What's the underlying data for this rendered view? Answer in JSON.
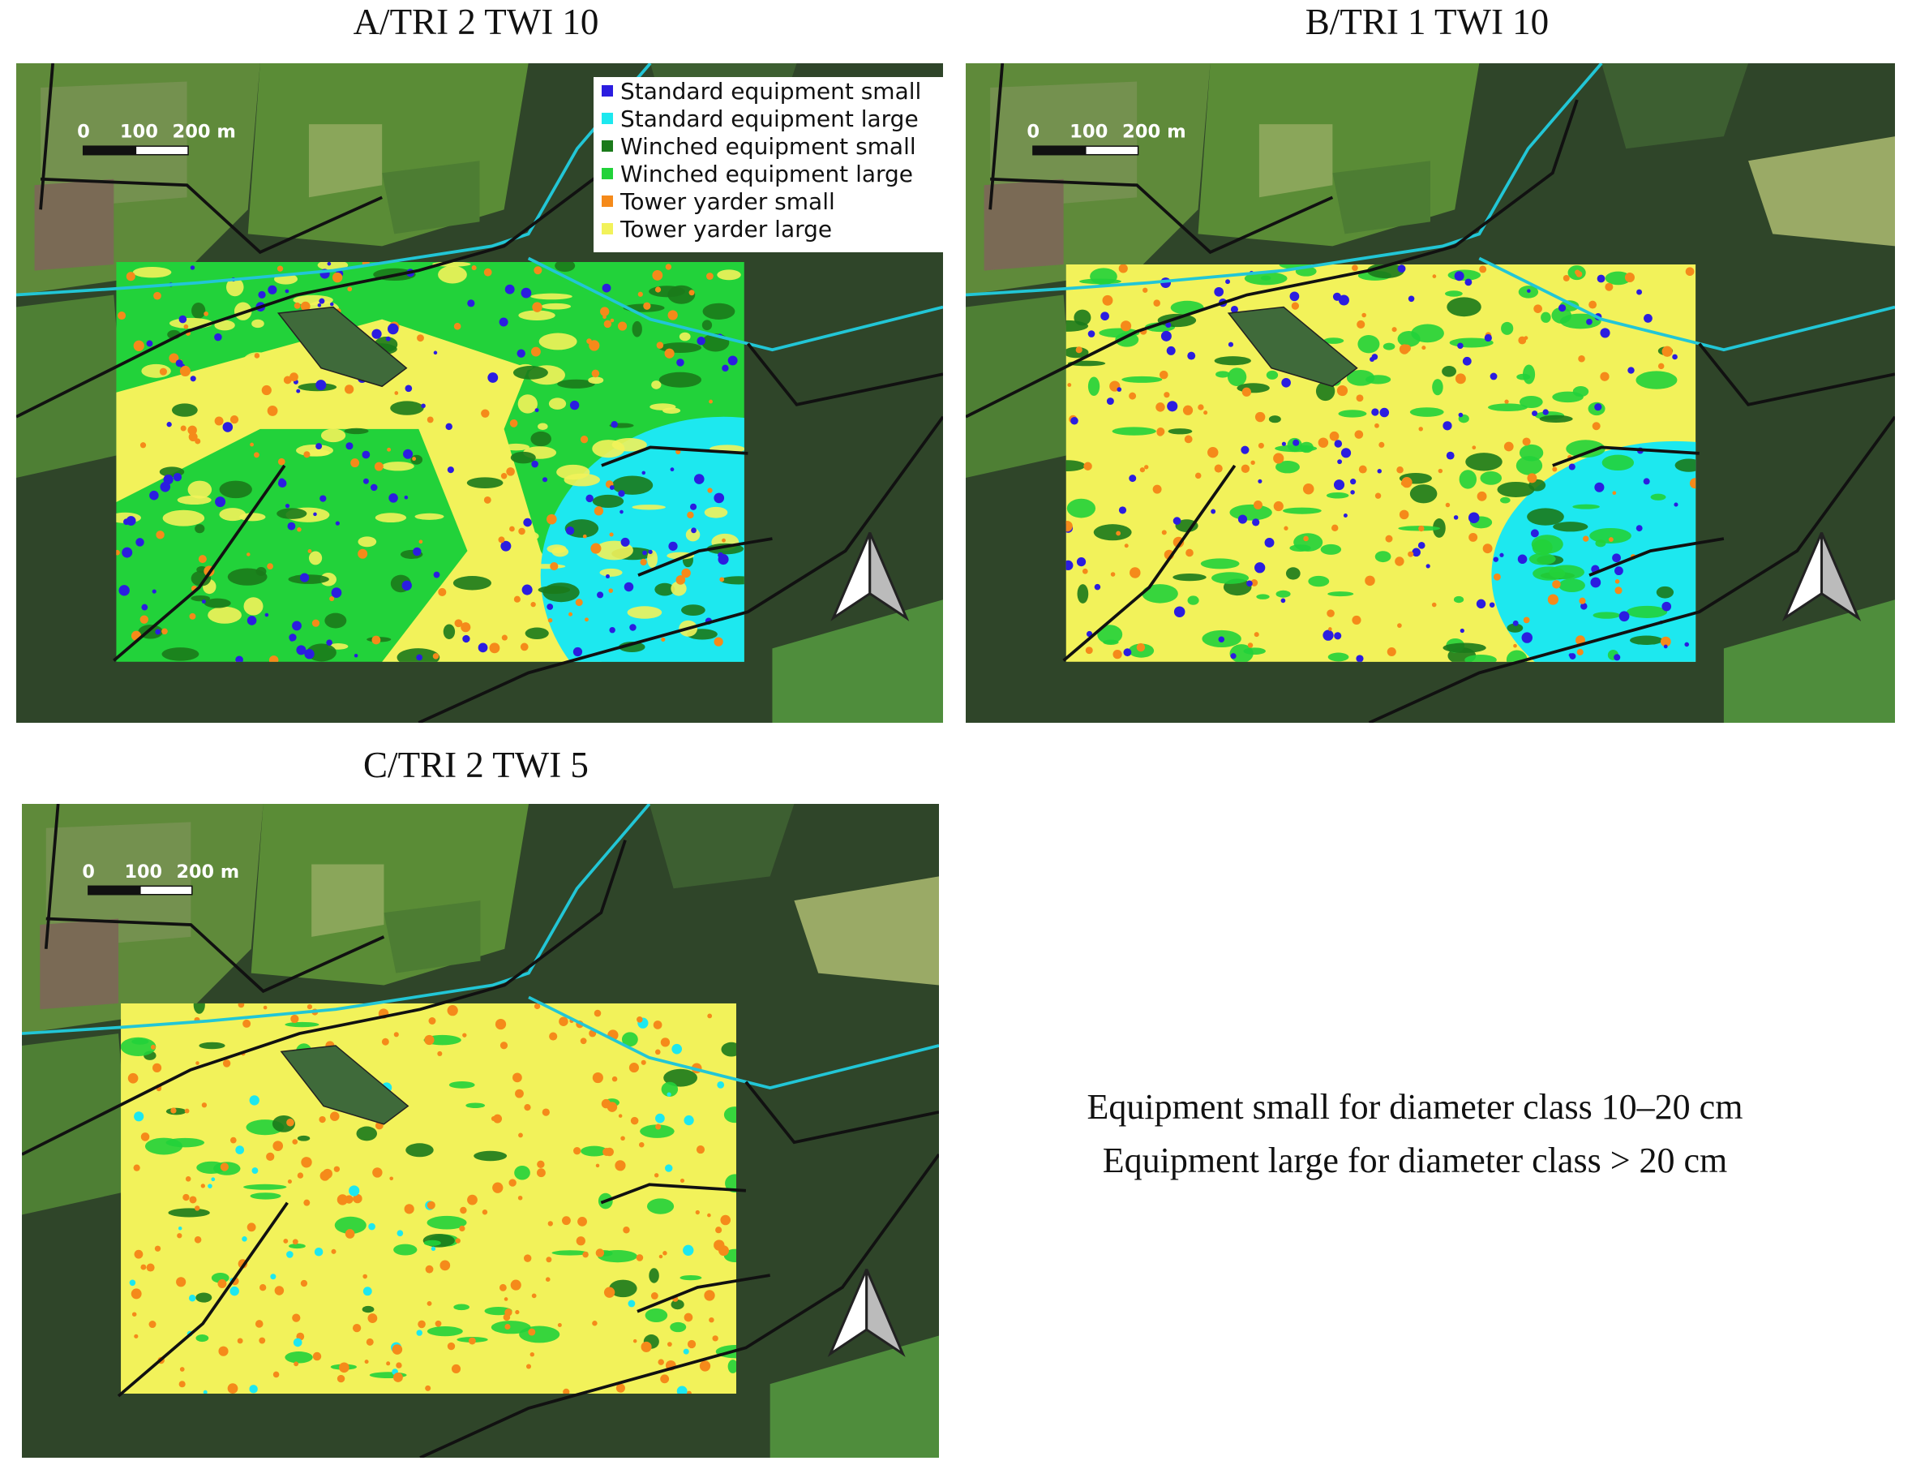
{
  "panels": [
    {
      "title": "A/TRI 2 TWI 10",
      "scale_labels": [
        "0",
        "100",
        "200 m"
      ]
    },
    {
      "title": "B/TRI 1 TWI 10",
      "scale_labels": [
        "0",
        "100",
        "200 m"
      ]
    },
    {
      "title": "C/TRI 2 TWI 5",
      "scale_labels": [
        "0",
        "100",
        "200 m"
      ]
    }
  ],
  "legend": {
    "items": [
      {
        "label": "Standard equipment small",
        "color": "#2b1de0"
      },
      {
        "label": "Standard equipment large",
        "color": "#1de8ef"
      },
      {
        "label": "Winched equipment small",
        "color": "#1b7a1b"
      },
      {
        "label": "Winched equipment large",
        "color": "#22d23a"
      },
      {
        "label": "Tower yarder small",
        "color": "#f58a1a"
      },
      {
        "label": "Tower yarder large",
        "color": "#f2f25a"
      }
    ]
  },
  "note": {
    "lines": [
      "Equipment small for diameter class 10–20 cm",
      "Equipment large for diameter class > 20 cm"
    ]
  }
}
